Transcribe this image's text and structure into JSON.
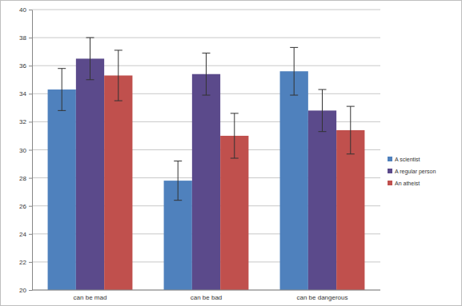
{
  "chart_data": {
    "type": "bar",
    "categories": [
      "can be mad",
      "can be bad",
      "can be dangerous"
    ],
    "series": [
      {
        "name": "A scientist",
        "color": "#4f81bd",
        "values": [
          34.3,
          27.8,
          35.6
        ],
        "errors": [
          1.5,
          1.4,
          1.7
        ]
      },
      {
        "name": "A regular person",
        "color": "#5b4a8b",
        "values": [
          36.5,
          35.4,
          32.8
        ],
        "errors": [
          1.5,
          1.5,
          1.5
        ]
      },
      {
        "name": "An atheist",
        "color": "#c0504d",
        "values": [
          35.3,
          31.0,
          31.4
        ],
        "errors": [
          1.8,
          1.6,
          1.7
        ]
      }
    ],
    "ylim": [
      20,
      40
    ],
    "yticks": [
      20,
      22,
      24,
      26,
      28,
      30,
      32,
      34,
      36,
      38,
      40
    ],
    "grid": true,
    "legend": "right"
  }
}
